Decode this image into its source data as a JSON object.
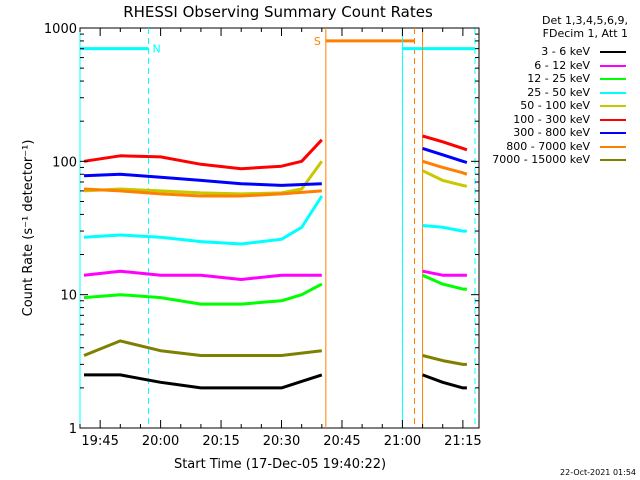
{
  "chart_data": {
    "type": "line",
    "title": "RHESSI Observing Summary Count Rates",
    "xlabel": "Start Time (17-Dec-05 19:40:22)",
    "ylabel": "Count Rate (s⁻¹ detector⁻¹)",
    "y_scale": "log",
    "ylim": [
      1,
      1000
    ],
    "y_ticks": [
      {
        "value": 1,
        "label": "1"
      },
      {
        "value": 10,
        "label": "10"
      },
      {
        "value": 100,
        "label": "100"
      },
      {
        "value": 1000,
        "label": "1000"
      }
    ],
    "x_range_minutes": [
      "19:40",
      "21:19"
    ],
    "x_ticks": [
      "19:45",
      "20:00",
      "20:15",
      "20:30",
      "20:45",
      "21:00",
      "21:15"
    ],
    "grid": false,
    "legend_header": [
      "Det 1,3,4,5,6,9,",
      "FDecim 1, Att 1"
    ],
    "legend_position": "right",
    "series": [
      {
        "name": "3 - 6 keV",
        "color": "#000000",
        "segments": [
          {
            "x": [
              "19:41",
              "19:50",
              "20:00",
              "20:10",
              "20:20",
              "20:30",
              "20:40"
            ],
            "y": [
              2.5,
              2.5,
              2.2,
              2.0,
              2.0,
              2.0,
              2.5
            ]
          },
          {
            "x": [
              "21:05",
              "21:10",
              "21:15",
              "21:16"
            ],
            "y": [
              2.5,
              2.2,
              2.0,
              2.0
            ]
          }
        ]
      },
      {
        "name": "6 - 12 keV",
        "color": "#ff00ff",
        "segments": [
          {
            "x": [
              "19:41",
              "19:50",
              "20:00",
              "20:10",
              "20:20",
              "20:30",
              "20:40"
            ],
            "y": [
              14,
              15,
              14,
              14,
              13,
              14,
              14
            ]
          },
          {
            "x": [
              "21:05",
              "21:10",
              "21:15",
              "21:16"
            ],
            "y": [
              15,
              14,
              14,
              14
            ]
          }
        ]
      },
      {
        "name": "12 - 25 keV",
        "color": "#00ff00",
        "segments": [
          {
            "x": [
              "19:41",
              "19:50",
              "20:00",
              "20:10",
              "20:20",
              "20:30",
              "20:35",
              "20:40"
            ],
            "y": [
              9.5,
              10,
              9.5,
              8.5,
              8.5,
              9,
              10,
              12
            ]
          },
          {
            "x": [
              "21:05",
              "21:10",
              "21:15",
              "21:16"
            ],
            "y": [
              14,
              12,
              11,
              11
            ]
          }
        ]
      },
      {
        "name": "25 - 50 keV",
        "color": "#00ffff",
        "segments": [
          {
            "x": [
              "19:41",
              "19:50",
              "20:00",
              "20:10",
              "20:20",
              "20:30",
              "20:35",
              "20:40"
            ],
            "y": [
              27,
              28,
              27,
              25,
              24,
              26,
              32,
              55
            ]
          },
          {
            "x": [
              "21:05",
              "21:10",
              "21:15",
              "21:16"
            ],
            "y": [
              33,
              32,
              30,
              30
            ]
          }
        ]
      },
      {
        "name": "50 - 100 keV",
        "color": "#c8c800",
        "segments": [
          {
            "x": [
              "19:41",
              "19:50",
              "20:00",
              "20:10",
              "20:20",
              "20:30",
              "20:35",
              "20:40"
            ],
            "y": [
              60,
              62,
              60,
              58,
              57,
              58,
              62,
              100
            ]
          },
          {
            "x": [
              "21:05",
              "21:10",
              "21:15",
              "21:16"
            ],
            "y": [
              85,
              72,
              66,
              65
            ]
          }
        ]
      },
      {
        "name": "100 - 300 keV",
        "color": "#ff0000",
        "segments": [
          {
            "x": [
              "19:41",
              "19:50",
              "20:00",
              "20:10",
              "20:20",
              "20:30",
              "20:35",
              "20:40"
            ],
            "y": [
              100,
              110,
              108,
              95,
              88,
              92,
              100,
              145
            ]
          },
          {
            "x": [
              "21:05",
              "21:10",
              "21:15",
              "21:16"
            ],
            "y": [
              155,
              140,
              125,
              122
            ]
          }
        ]
      },
      {
        "name": "300 - 800 keV",
        "color": "#0000ff",
        "segments": [
          {
            "x": [
              "19:41",
              "19:50",
              "20:00",
              "20:10",
              "20:20",
              "20:30",
              "20:40"
            ],
            "y": [
              78,
              80,
              76,
              72,
              68,
              66,
              68
            ]
          },
          {
            "x": [
              "21:05",
              "21:10",
              "21:15",
              "21:16"
            ],
            "y": [
              125,
              112,
              100,
              98
            ]
          }
        ]
      },
      {
        "name": "800 - 7000 keV",
        "color": "#ff8000",
        "segments": [
          {
            "x": [
              "19:41",
              "19:50",
              "20:00",
              "20:10",
              "20:20",
              "20:30",
              "20:40"
            ],
            "y": [
              62,
              60,
              57,
              55,
              55,
              57,
              60
            ]
          },
          {
            "x": [
              "21:05",
              "21:10",
              "21:15",
              "21:16"
            ],
            "y": [
              100,
              90,
              82,
              80
            ]
          }
        ]
      },
      {
        "name": "7000 - 15000 keV",
        "color": "#808000",
        "segments": [
          {
            "x": [
              "19:41",
              "19:50",
              "20:00",
              "20:10",
              "20:20",
              "20:30",
              "20:40"
            ],
            "y": [
              3.5,
              4.5,
              3.8,
              3.5,
              3.5,
              3.5,
              3.8
            ]
          },
          {
            "x": [
              "21:05",
              "21:10",
              "21:15",
              "21:16"
            ],
            "y": [
              3.5,
              3.2,
              3.0,
              3.0
            ]
          }
        ]
      }
    ],
    "annotations": [
      {
        "kind": "vline",
        "x": "19:40",
        "color": "#00ffff",
        "style": "solid"
      },
      {
        "kind": "vline",
        "x": "19:57",
        "color": "#00ffff",
        "style": "dashed"
      },
      {
        "kind": "hbar",
        "x0": "19:40",
        "x1": "19:57",
        "y": 700,
        "color": "#00ffff",
        "label": "N"
      },
      {
        "kind": "vline",
        "x": "20:41",
        "color": "#ff8000",
        "style": "solid"
      },
      {
        "kind": "vline",
        "x": "21:03",
        "color": "#ff8000",
        "style": "dashed"
      },
      {
        "kind": "hbar",
        "x0": "20:41",
        "x1": "21:03",
        "y": 800,
        "color": "#ff8000",
        "label": "S"
      },
      {
        "kind": "vline",
        "x": "21:00",
        "color": "#00ffff",
        "style": "solid"
      },
      {
        "kind": "vline",
        "x": "21:18",
        "color": "#00ffff",
        "style": "dashed"
      },
      {
        "kind": "hbar",
        "x0": "21:00",
        "x1": "21:18",
        "y": 700,
        "color": "#00ffff",
        "label": ""
      },
      {
        "kind": "vline",
        "x": "21:05",
        "color": "#ff8000",
        "style": "solid"
      }
    ]
  },
  "footer": {
    "timestamp": "22-Oct-2021 01:54"
  }
}
